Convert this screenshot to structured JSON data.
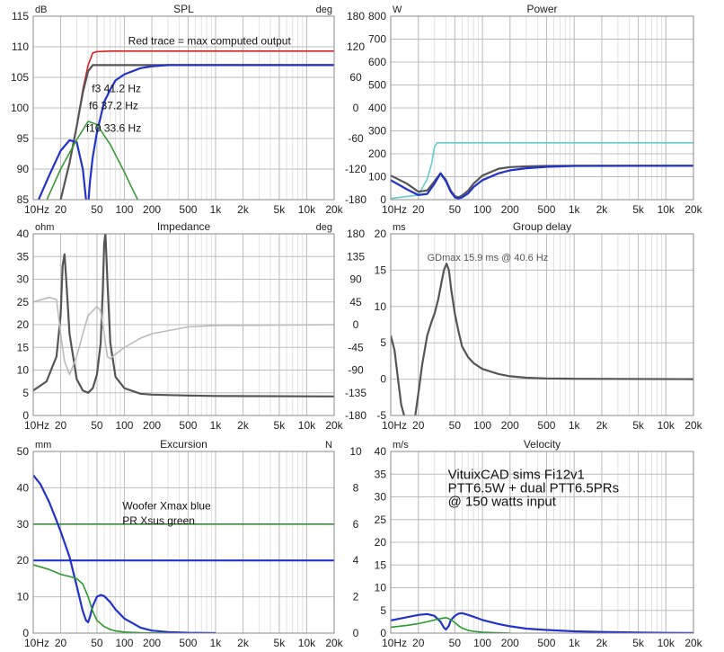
{
  "chart_data": [
    {
      "type": "line",
      "title": "SPL",
      "unit_left": "dB",
      "unit_right": "deg",
      "x_scale": "log",
      "xlim": [
        10,
        20000
      ],
      "ylim": [
        85,
        115
      ],
      "ylim_right": [
        -180,
        180
      ],
      "x_ticks": [
        "10Hz",
        "20",
        "50",
        "100",
        "200",
        "500",
        "1k",
        "2k",
        "5k",
        "10k",
        "20k"
      ],
      "y_ticks": [
        "85",
        "90",
        "95",
        "100",
        "105",
        "110",
        "115"
      ],
      "y_ticks_right": [
        "-180",
        "-120",
        "-60",
        "0",
        "60",
        "120",
        "180"
      ],
      "grid": true,
      "annotations": [
        {
          "text": "Red trace = max computed output",
          "x": 110,
          "y": 110.4
        },
        {
          "text": "f3 41.2 Hz",
          "x": 44,
          "y": 102.6
        },
        {
          "text": "f6 37.2 Hz",
          "x": 41,
          "y": 99.8
        },
        {
          "text": "f10 33.6 Hz",
          "x": 38,
          "y": 96.1
        }
      ],
      "series": [
        {
          "color": "#dd2222",
          "x": [
            10,
            20,
            25,
            30,
            35,
            40,
            45,
            50,
            70,
            100,
            200,
            500,
            1000,
            2000,
            5000,
            10000,
            20000
          ],
          "y": [
            72,
            85,
            91,
            97,
            103,
            107,
            109,
            109.2,
            109.3,
            109.3,
            109.3,
            109.3,
            109.3,
            109.3,
            109.3,
            109.3,
            109.3
          ]
        },
        {
          "color": "#555555",
          "x": [
            10,
            20,
            25,
            30,
            35,
            40,
            45,
            50,
            70,
            100,
            200,
            500,
            1000,
            2000,
            5000,
            10000,
            20000
          ],
          "y": [
            72,
            85,
            91,
            97,
            102.5,
            106,
            107,
            107,
            107,
            107,
            107,
            107,
            107,
            107,
            107,
            107,
            107
          ]
        },
        {
          "color": "#2233cc",
          "x": [
            10,
            15,
            20,
            25,
            30,
            35,
            38,
            40,
            42,
            45,
            50,
            60,
            70,
            80,
            100,
            150,
            200,
            300,
            500,
            1000,
            20000
          ],
          "y": [
            83,
            89,
            93,
            94.7,
            94.4,
            90,
            85,
            84,
            88,
            92,
            96,
            101,
            103,
            104.5,
            105.5,
            106.5,
            106.8,
            107,
            107,
            107,
            107
          ]
        },
        {
          "color": "#3a9a3a",
          "x": [
            10,
            20,
            30,
            40,
            50,
            70,
            100,
            120,
            140
          ],
          "y": [
            80,
            90,
            94.8,
            97.8,
            97.3,
            94,
            89.5,
            87,
            85
          ]
        }
      ]
    },
    {
      "type": "line",
      "title": "Power",
      "unit_left": "W",
      "x_scale": "log",
      "xlim": [
        10,
        20000
      ],
      "ylim": [
        0,
        800
      ],
      "x_ticks": [
        "10Hz",
        "20",
        "50",
        "100",
        "200",
        "500",
        "1k",
        "2k",
        "5k",
        "10k",
        "20k"
      ],
      "y_ticks": [
        "0",
        "100",
        "200",
        "300",
        "400",
        "500",
        "600",
        "700",
        "800"
      ],
      "grid": true,
      "series": [
        {
          "color": "#66cccc",
          "x": [
            10,
            20,
            25,
            28,
            30,
            32,
            50,
            100,
            1000,
            20000
          ],
          "y": [
            5,
            20,
            90,
            160,
            230,
            248,
            248,
            248,
            248,
            248
          ]
        },
        {
          "color": "#555555",
          "x": [
            10,
            15,
            20,
            25,
            30,
            35,
            40,
            45,
            50,
            55,
            60,
            70,
            80,
            100,
            150,
            200,
            300,
            500,
            1000,
            20000
          ],
          "y": [
            105,
            70,
            35,
            40,
            80,
            115,
            85,
            40,
            15,
            10,
            18,
            40,
            70,
            105,
            135,
            142,
            145,
            147,
            148,
            148
          ]
        },
        {
          "color": "#2233cc",
          "x": [
            10,
            15,
            20,
            25,
            30,
            35,
            40,
            45,
            50,
            55,
            60,
            70,
            80,
            100,
            150,
            200,
            300,
            500,
            1000,
            20000
          ],
          "y": [
            85,
            45,
            20,
            25,
            70,
            115,
            80,
            35,
            10,
            5,
            10,
            28,
            55,
            85,
            115,
            128,
            137,
            143,
            147,
            148
          ]
        }
      ]
    },
    {
      "type": "line",
      "title": "Impedance",
      "unit_left": "ohm",
      "unit_right": "deg",
      "x_scale": "log",
      "xlim": [
        10,
        20000
      ],
      "ylim": [
        0,
        40
      ],
      "ylim_right": [
        -180,
        180
      ],
      "x_ticks": [
        "10Hz",
        "20",
        "50",
        "100",
        "200",
        "500",
        "1k",
        "2k",
        "5k",
        "10k",
        "20k"
      ],
      "y_ticks": [
        "0",
        "5",
        "10",
        "15",
        "20",
        "25",
        "30",
        "35",
        "40"
      ],
      "y_ticks_right": [
        "-180",
        "-135",
        "-90",
        "-45",
        "0",
        "45",
        "90",
        "135",
        "180"
      ],
      "grid": true,
      "series": [
        {
          "color": "#555555",
          "x": [
            10,
            14,
            18,
            20,
            21,
            22,
            23,
            25,
            30,
            35,
            40,
            45,
            50,
            55,
            58,
            60,
            62,
            65,
            70,
            80,
            100,
            150,
            200,
            500,
            1000,
            20000
          ],
          "y": [
            5.5,
            7.5,
            13,
            22,
            33,
            35.5,
            30,
            18,
            8,
            5.5,
            5,
            6,
            9,
            16,
            28,
            38,
            40,
            30,
            16,
            8.5,
            6,
            4.8,
            4.6,
            4.4,
            4.3,
            4.2
          ]
        },
        {
          "color": "#bbbbbb",
          "x": [
            10,
            15,
            18,
            20,
            22,
            25,
            30,
            35,
            40,
            50,
            55,
            60,
            65,
            70,
            80,
            100,
            150,
            200,
            500,
            1000,
            20000
          ],
          "y": [
            25,
            26,
            25.5,
            18,
            12,
            9,
            13,
            18,
            22,
            24,
            23,
            18,
            13,
            12.5,
            13.5,
            15,
            17,
            18,
            19.5,
            19.8,
            20
          ]
        }
      ]
    },
    {
      "type": "line",
      "title": "Group delay",
      "unit_left": "ms",
      "x_scale": "log",
      "xlim": [
        10,
        20000
      ],
      "ylim": [
        -5,
        20
      ],
      "x_ticks": [
        "10Hz",
        "20",
        "50",
        "100",
        "200",
        "500",
        "1k",
        "2k",
        "5k",
        "10k",
        "20k"
      ],
      "y_ticks": [
        "-5",
        "0",
        "5",
        "10",
        "15",
        "20"
      ],
      "grid": true,
      "annotations": [
        {
          "text": "GDmax 15.9 ms  @ 40.6 Hz",
          "x": 25,
          "y": 16.3
        }
      ],
      "series": [
        {
          "color": "#555555",
          "x": [
            10,
            11,
            12,
            13,
            14
          ],
          "y": [
            6,
            4,
            0,
            -3.5,
            -5
          ]
        },
        {
          "color": "#555555",
          "x": [
            18.5,
            20,
            22,
            25,
            28,
            30,
            33,
            36,
            38,
            40.6,
            43,
            46,
            50,
            55,
            60,
            70,
            80,
            100,
            150,
            200,
            300,
            500,
            1000,
            20000
          ],
          "y": [
            -5,
            -2,
            2,
            6,
            8,
            9,
            11,
            13.5,
            15,
            15.9,
            15,
            12,
            9,
            6.5,
            4.5,
            3,
            2.2,
            1.4,
            0.7,
            0.4,
            0.2,
            0.1,
            0.05,
            0
          ]
        }
      ]
    },
    {
      "type": "line",
      "title": "Excursion",
      "unit_left": "mm",
      "unit_right": "N",
      "x_scale": "log",
      "xlim": [
        10,
        20000
      ],
      "ylim": [
        0,
        50
      ],
      "ylim_right": [
        0,
        10
      ],
      "x_ticks": [
        "10Hz",
        "20",
        "50",
        "100",
        "200",
        "500",
        "1k",
        "2k",
        "5k",
        "10k",
        "20k"
      ],
      "y_ticks": [
        "0",
        "10",
        "20",
        "30",
        "40",
        "50"
      ],
      "y_ticks_right": [
        "0",
        "2",
        "4",
        "6",
        "8",
        "10"
      ],
      "grid": true,
      "annotations": [
        {
          "text": "Woofer Xmax blue",
          "x": 95,
          "y": 34
        },
        {
          "text": "PR Xsus green",
          "x": 95,
          "y": 30
        }
      ],
      "series": [
        {
          "color": "#3a8a3a",
          "x": [
            10,
            20000
          ],
          "y": [
            30,
            30
          ]
        },
        {
          "color": "#2233cc",
          "x": [
            10,
            20000
          ],
          "y": [
            20,
            20
          ]
        },
        {
          "color": "#2233cc",
          "x": [
            10,
            12,
            15,
            18,
            20,
            25,
            30,
            35,
            38,
            40,
            42,
            45,
            50,
            55,
            60,
            70,
            80,
            100,
            150,
            200,
            300,
            500,
            1000
          ],
          "y": [
            43.5,
            41,
            36,
            31,
            28,
            21,
            13,
            6,
            3.5,
            3,
            4.5,
            7.5,
            10,
            10.5,
            10.2,
            8.5,
            6.5,
            4,
            1.5,
            0.7,
            0.3,
            0.1,
            0
          ]
        },
        {
          "color": "#2a9a2a",
          "x": [
            10,
            15,
            20,
            25,
            30,
            35,
            40,
            45,
            50,
            60,
            70,
            80,
            100,
            120,
            150,
            200,
            300
          ],
          "y": [
            18.8,
            17.5,
            16.2,
            15.6,
            15,
            13.5,
            10,
            6,
            3.5,
            1.8,
            1,
            0.6,
            0.3,
            0.2,
            0.1,
            0.05,
            0
          ]
        }
      ]
    },
    {
      "type": "line",
      "title": "Velocity",
      "unit_left": "m/s",
      "x_scale": "log",
      "xlim": [
        10,
        20000
      ],
      "ylim": [
        0,
        40
      ],
      "x_ticks": [
        "10Hz",
        "20",
        "50",
        "100",
        "200",
        "500",
        "1k",
        "2k",
        "5k",
        "10k",
        "20k"
      ],
      "y_ticks": [
        "0",
        "5",
        "10",
        "15",
        "20",
        "25",
        "30",
        "35",
        "40"
      ],
      "grid": true,
      "annotations": [
        {
          "text": "VituixCAD sims Fi12v1",
          "x": 42,
          "y": 34
        },
        {
          "text": "PTT6.5W + dual PTT6.5PRs",
          "x": 42,
          "y": 31
        },
        {
          "text": "@ 150 watts input",
          "x": 42,
          "y": 28
        }
      ],
      "series": [
        {
          "color": "#2233cc",
          "x": [
            10,
            15,
            20,
            25,
            30,
            35,
            38,
            40,
            43,
            45,
            50,
            55,
            60,
            70,
            80,
            100,
            150,
            200,
            300,
            500,
            1000,
            2000,
            5000,
            10000,
            20000
          ],
          "y": [
            2.8,
            3.5,
            4,
            4.2,
            3.8,
            2.5,
            1.2,
            0.8,
            1.6,
            2.8,
            3.8,
            4.3,
            4.4,
            4,
            3.6,
            2.9,
            2,
            1.5,
            1,
            0.7,
            0.4,
            0.25,
            0.12,
            0.05,
            0.02
          ]
        },
        {
          "color": "#2a9a2a",
          "x": [
            10,
            15,
            20,
            25,
            30,
            35,
            40,
            45,
            50,
            55,
            60,
            70,
            80,
            100,
            150,
            200
          ],
          "y": [
            1.3,
            1.7,
            2.1,
            2.5,
            2.9,
            3.2,
            3.4,
            3.0,
            2.3,
            1.6,
            1.1,
            0.6,
            0.4,
            0.2,
            0.05,
            0
          ]
        }
      ]
    }
  ]
}
